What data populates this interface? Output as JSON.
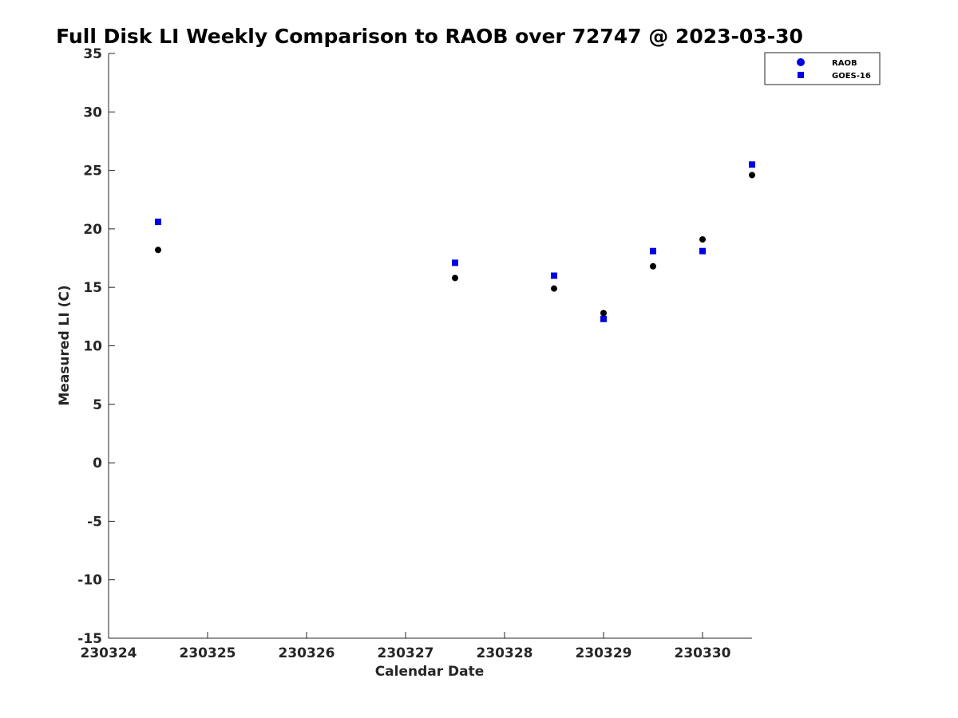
{
  "chart_data": {
    "type": "scatter",
    "title": "Full Disk LI Weekly Comparison to RAOB over 72747 @ 2023-03-30",
    "xlabel": "Calendar Date",
    "ylabel": "Measured LI (C)",
    "xlim": [
      230324,
      230330.5
    ],
    "ylim": [
      -15,
      35
    ],
    "x_ticks": [
      230324,
      230325,
      230326,
      230327,
      230328,
      230329,
      230330
    ],
    "x_tick_labels": [
      "230324",
      "230325",
      "230326",
      "230327",
      "230328",
      "230329",
      "230330"
    ],
    "y_ticks": [
      -15,
      -10,
      -5,
      0,
      5,
      10,
      15,
      20,
      25,
      30,
      35
    ],
    "y_tick_labels": [
      "-15",
      "-10",
      "-5",
      "0",
      "5",
      "10",
      "15",
      "20",
      "25",
      "30",
      "35"
    ],
    "grid": false,
    "legend_position": "top-right, outside plot",
    "series": [
      {
        "name": "RAOB",
        "marker": "circle",
        "legend_color": "#0000e6",
        "point_color": "#000000",
        "x": [
          230324.5,
          230327.5,
          230328.5,
          230329,
          230329.5,
          230330,
          230330.5
        ],
        "y": [
          18.2,
          15.8,
          14.9,
          12.8,
          16.8,
          19.1,
          24.6
        ]
      },
      {
        "name": "GOES-16",
        "marker": "square",
        "legend_color": "#0000e6",
        "point_color": "#0000e6",
        "x": [
          230324.5,
          230327.5,
          230328.5,
          230329,
          230329.5,
          230330,
          230330.5
        ],
        "y": [
          20.6,
          17.1,
          16.0,
          12.3,
          18.1,
          18.1,
          25.5
        ]
      }
    ]
  }
}
